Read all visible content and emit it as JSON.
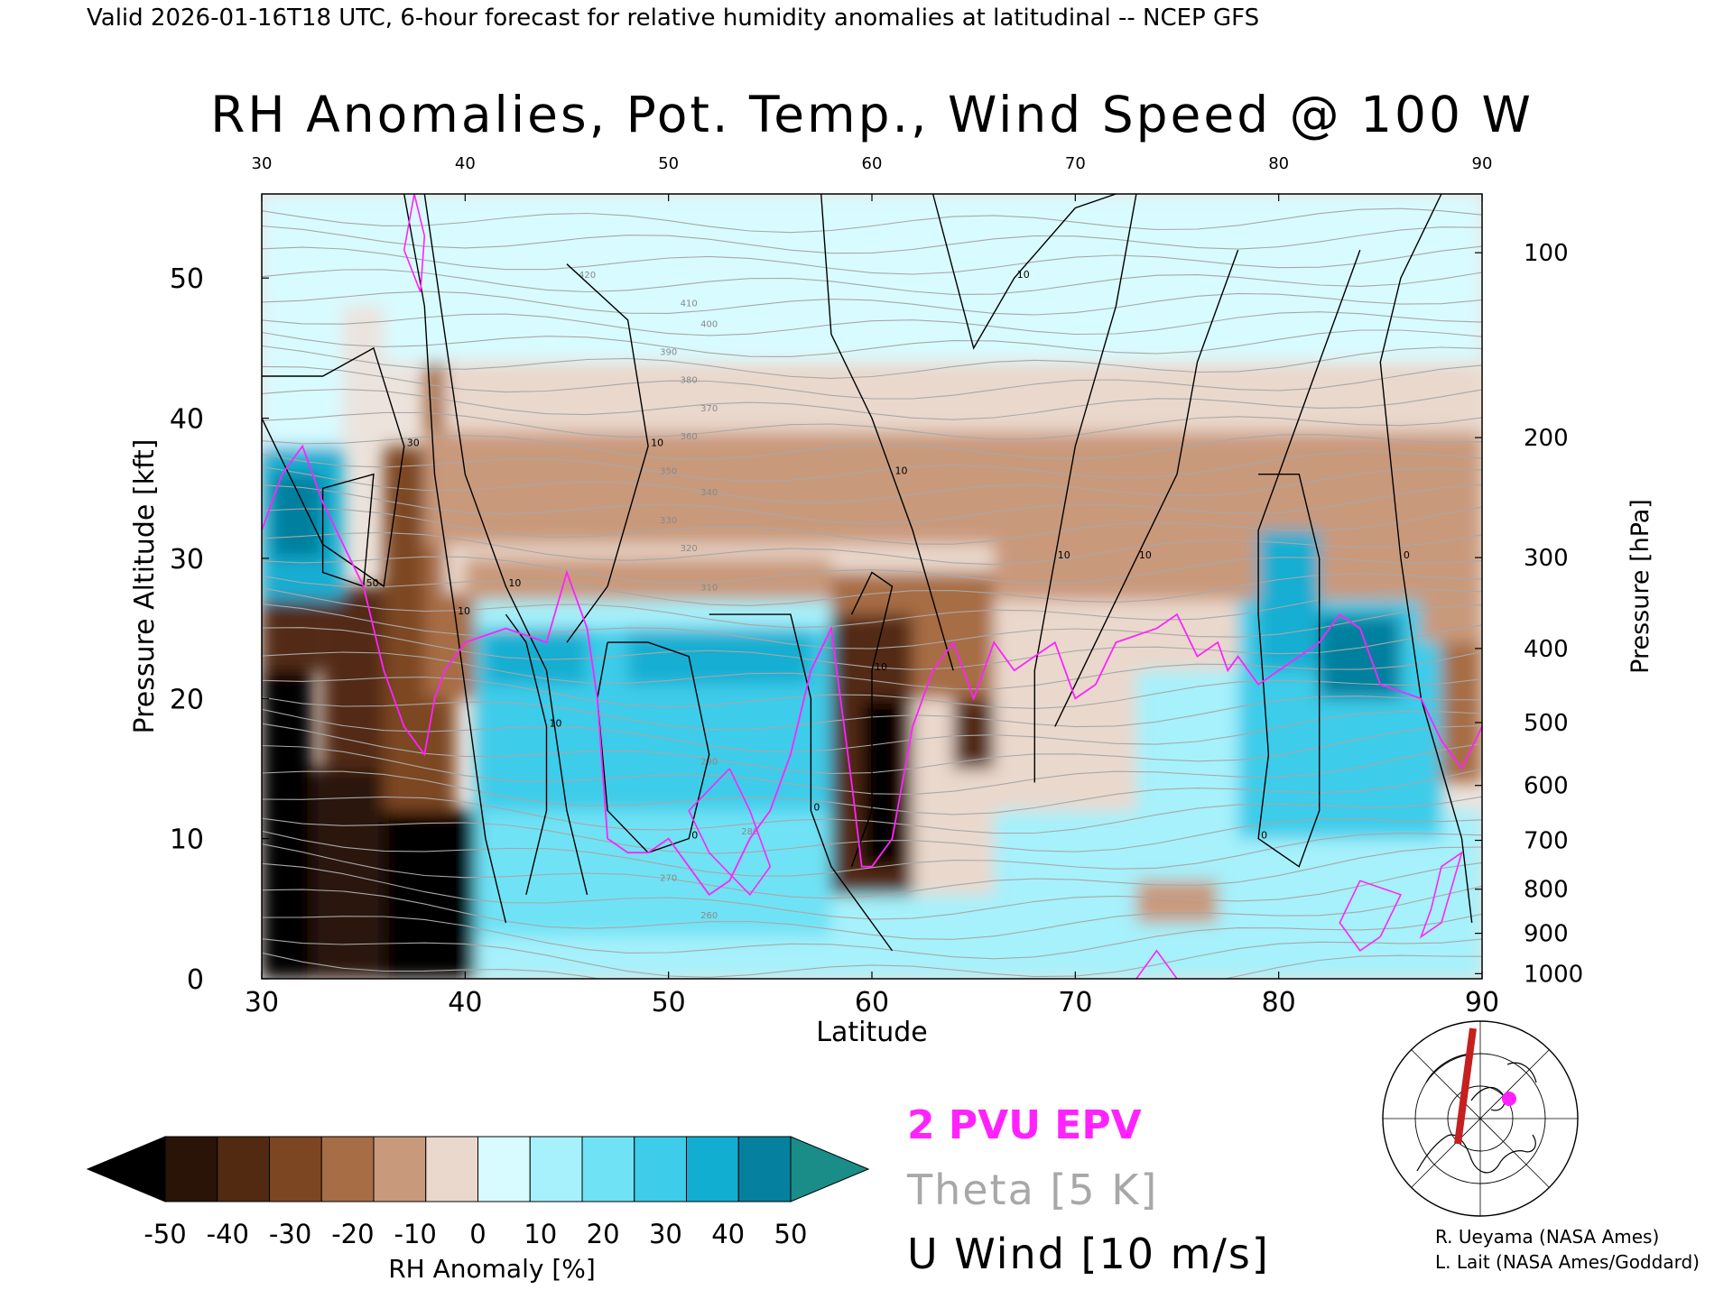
{
  "header": {
    "valid_line": "Valid 2026-01-16T18 UTC, 6-hour forecast for relative humidity anomalies at latitudinal -- NCEP GFS",
    "title": "RH Anomalies, Pot. Temp., Wind Speed @ 100 W"
  },
  "legend": {
    "epv": "2 PVU EPV",
    "theta": "Theta [5 K]",
    "uwind": "U Wind [10 m/s]",
    "epv_color": "#ff22ff",
    "theta_color": "#a8a8a8",
    "uwind_color": "#000000"
  },
  "credits": {
    "line1": "R. Ueyama (NASA Ames)",
    "line2": "L. Lait (NASA Ames/Goddard)"
  },
  "colorbar": {
    "label": "RH Anomaly [%]",
    "ticks": [
      "-50",
      "-40",
      "-30",
      "-20",
      "-10",
      "0",
      "10",
      "20",
      "30",
      "40",
      "50"
    ],
    "colors": [
      "#2a1307",
      "#522a12",
      "#7d4622",
      "#a76d45",
      "#c9997b",
      "#ead8cc",
      "#d8fbff",
      "#a6f1fb",
      "#6fe2f5",
      "#3dcce9",
      "#12aed2",
      "#05809e"
    ],
    "under_color": "#000000",
    "over_color": "#1a8d88"
  },
  "map_icon": "polar-stereographic-locator-map-icon",
  "chart_data": {
    "type": "heatmap",
    "xlabel": "Latitude",
    "ylabel": "Pressure Altitude [kft]",
    "y2label": "Pressure [hPa]",
    "xlim": [
      30,
      90
    ],
    "ylim": [
      0,
      56
    ],
    "x_ticks": [
      30,
      40,
      50,
      60,
      70,
      80,
      90
    ],
    "top_ticks": [
      30,
      40,
      50,
      60,
      70,
      80,
      90
    ],
    "y_ticks": [
      0,
      10,
      20,
      30,
      40,
      50
    ],
    "pressure_ticks": [
      100,
      200,
      300,
      400,
      500,
      600,
      700,
      800,
      900,
      1000
    ],
    "theta_interval": 5,
    "theta_labels": [
      {
        "value": 260,
        "lat": 52,
        "alt": 4.3
      },
      {
        "value": 270,
        "lat": 50,
        "alt": 7.0
      },
      {
        "value": 280,
        "lat": 54,
        "alt": 10.3
      },
      {
        "value": 290,
        "lat": 52,
        "alt": 15.3
      },
      {
        "value": 310,
        "lat": 52,
        "alt": 27.7
      },
      {
        "value": 320,
        "lat": 51,
        "alt": 30.5
      },
      {
        "value": 330,
        "lat": 50,
        "alt": 32.5
      },
      {
        "value": 340,
        "lat": 52,
        "alt": 34.5
      },
      {
        "value": 350,
        "lat": 50,
        "alt": 36.0
      },
      {
        "value": 360,
        "lat": 51,
        "alt": 38.5
      },
      {
        "value": 370,
        "lat": 52,
        "alt": 40.5
      },
      {
        "value": 380,
        "lat": 51,
        "alt": 42.5
      },
      {
        "value": 390,
        "lat": 50,
        "alt": 44.5
      },
      {
        "value": 400,
        "lat": 52,
        "alt": 46.5
      },
      {
        "value": 410,
        "lat": 51,
        "alt": 48.0
      },
      {
        "value": 420,
        "lat": 46,
        "alt": 50.0
      }
    ],
    "rh_cells": [
      {
        "lat0": 30,
        "lat1": 32.5,
        "alt0": 0,
        "alt1": 22,
        "rh": -55
      },
      {
        "lat0": 32.5,
        "lat1": 36,
        "alt0": 0,
        "alt1": 15,
        "rh": -45
      },
      {
        "lat0": 36,
        "lat1": 40.5,
        "alt0": 0,
        "alt1": 12,
        "rh": -55
      },
      {
        "lat0": 30,
        "lat1": 33,
        "alt0": 22,
        "alt1": 27,
        "rh": -35
      },
      {
        "lat0": 33,
        "lat1": 39,
        "alt0": 15,
        "alt1": 28,
        "rh": -35
      },
      {
        "lat0": 36,
        "lat1": 39.5,
        "alt0": 12,
        "alt1": 38,
        "rh": -30
      },
      {
        "lat0": 38,
        "lat1": 41,
        "alt0": 20,
        "alt1": 44,
        "rh": -25
      },
      {
        "lat0": 40.5,
        "lat1": 43.5,
        "alt0": 0,
        "alt1": 4,
        "rh": -30
      },
      {
        "lat0": 43.5,
        "lat1": 46.5,
        "alt0": 0,
        "alt1": 4,
        "rh": -10
      },
      {
        "lat0": 30,
        "lat1": 34,
        "alt0": 27,
        "alt1": 38,
        "rh": 35
      },
      {
        "lat0": 30.5,
        "lat1": 33,
        "alt0": 30,
        "alt1": 36,
        "rh": 48
      },
      {
        "lat0": 30,
        "lat1": 34,
        "alt0": 38,
        "alt1": 48,
        "rh": 5
      },
      {
        "lat0": 30,
        "lat1": 38,
        "alt0": 48,
        "alt1": 56,
        "rh": 8
      },
      {
        "lat0": 39,
        "lat1": 70,
        "alt0": 27.5,
        "alt1": 31,
        "rh": -5
      },
      {
        "lat0": 38,
        "lat1": 90,
        "alt0": 31,
        "alt1": 39,
        "rh": -12
      },
      {
        "lat0": 39,
        "lat1": 90,
        "alt0": 39,
        "alt1": 44,
        "rh": -5
      },
      {
        "lat0": 40,
        "lat1": 58,
        "alt0": 27,
        "alt1": 30,
        "rh": -15
      },
      {
        "lat0": 40.5,
        "lat1": 58,
        "alt0": 0,
        "alt1": 27,
        "rh": 15
      },
      {
        "lat0": 40.5,
        "lat1": 58,
        "alt0": 3,
        "alt1": 12,
        "rh": 20
      },
      {
        "lat0": 40.5,
        "lat1": 58,
        "alt0": 12,
        "alt1": 25,
        "rh": 30
      },
      {
        "lat0": 41,
        "lat1": 46,
        "alt0": 21,
        "alt1": 25,
        "rh": 40
      },
      {
        "lat0": 48,
        "lat1": 57,
        "alt0": 21,
        "alt1": 25,
        "rh": 40
      },
      {
        "lat0": 58,
        "lat1": 66,
        "alt0": 20,
        "alt1": 29,
        "rh": -25
      },
      {
        "lat0": 58,
        "lat1": 62,
        "alt0": 6,
        "alt1": 26,
        "rh": -35
      },
      {
        "lat0": 59.5,
        "lat1": 61.5,
        "alt0": 8,
        "alt1": 20,
        "rh": -55
      },
      {
        "lat0": 58,
        "lat1": 66,
        "alt0": 0,
        "alt1": 6,
        "rh": 15
      },
      {
        "lat0": 62,
        "lat1": 66,
        "alt0": 6,
        "alt1": 20,
        "rh": -8
      },
      {
        "lat0": 64,
        "lat1": 66,
        "alt0": 15,
        "alt1": 20,
        "rh": -40
      },
      {
        "lat0": 66,
        "lat1": 90,
        "alt0": 27,
        "alt1": 31,
        "rh": -10
      },
      {
        "lat0": 66,
        "lat1": 78,
        "alt0": 12,
        "alt1": 27,
        "rh": -8
      },
      {
        "lat0": 73,
        "lat1": 78,
        "alt0": 12,
        "alt1": 22,
        "rh": 10
      },
      {
        "lat0": 66,
        "lat1": 90,
        "alt0": 0,
        "alt1": 12,
        "rh": 15
      },
      {
        "lat0": 73,
        "lat1": 77,
        "alt0": 4,
        "alt1": 7,
        "rh": -10
      },
      {
        "lat0": 78,
        "lat1": 88,
        "alt0": 10,
        "alt1": 27,
        "rh": 25
      },
      {
        "lat0": 79,
        "lat1": 82,
        "alt0": 22,
        "alt1": 32,
        "rh": 40
      },
      {
        "lat0": 82,
        "lat1": 86,
        "alt0": 20,
        "alt1": 26,
        "rh": 42
      },
      {
        "lat0": 88,
        "lat1": 90,
        "alt0": 14,
        "alt1": 24,
        "rh": -20
      },
      {
        "lat0": 87,
        "lat1": 90,
        "alt0": 24,
        "alt1": 30,
        "rh": -12
      },
      {
        "lat0": 36,
        "lat1": 90,
        "alt0": 44,
        "alt1": 56,
        "rh": 2
      }
    ],
    "uwind_contours": [
      {
        "label": "10",
        "points": [
          [
            38,
            56
          ],
          [
            39,
            46
          ],
          [
            40,
            36
          ],
          [
            42,
            28
          ],
          [
            44,
            22
          ],
          [
            45,
            12
          ],
          [
            46,
            6
          ]
        ]
      },
      {
        "label": "10",
        "points": [
          [
            37,
            56
          ],
          [
            38,
            48
          ],
          [
            38.5,
            36
          ],
          [
            39.5,
            26
          ],
          [
            41,
            10
          ],
          [
            42,
            4
          ]
        ]
      },
      {
        "label": "30",
        "points": [
          [
            30,
            43
          ],
          [
            33,
            43
          ],
          [
            35.5,
            45
          ],
          [
            37,
            38
          ],
          [
            36,
            28
          ],
          [
            33,
            31
          ],
          [
            30,
            40
          ]
        ]
      },
      {
        "label": "50",
        "points": [
          [
            33,
            35
          ],
          [
            35.5,
            36
          ],
          [
            35,
            28
          ],
          [
            33,
            29
          ],
          [
            33,
            35
          ]
        ]
      },
      {
        "label": "10",
        "points": [
          [
            45,
            51
          ],
          [
            48,
            47
          ],
          [
            49,
            38
          ],
          [
            47,
            28
          ],
          [
            45,
            24
          ]
        ]
      },
      {
        "label": "0",
        "points": [
          [
            47,
            24
          ],
          [
            49,
            24
          ],
          [
            51,
            23
          ],
          [
            52,
            16
          ],
          [
            51,
            10
          ],
          [
            49,
            9
          ],
          [
            47,
            12
          ],
          [
            46.5,
            20
          ],
          [
            47,
            24
          ]
        ]
      },
      {
        "label": "10",
        "points": [
          [
            42,
            26
          ],
          [
            43,
            24
          ],
          [
            44,
            18
          ],
          [
            44,
            12
          ],
          [
            43,
            6
          ]
        ]
      },
      {
        "label": "0",
        "points": [
          [
            52,
            26
          ],
          [
            56,
            26
          ],
          [
            57,
            20
          ],
          [
            57,
            12
          ],
          [
            58,
            8
          ],
          [
            60,
            4
          ],
          [
            61,
            2
          ]
        ]
      },
      {
        "label": "10",
        "points": [
          [
            59,
            26
          ],
          [
            60,
            29
          ],
          [
            61,
            28
          ],
          [
            60,
            22
          ],
          [
            60,
            12
          ],
          [
            59,
            8
          ]
        ]
      },
      {
        "label": "10",
        "points": [
          [
            57.5,
            56
          ],
          [
            58,
            46
          ],
          [
            60,
            40
          ],
          [
            61,
            36
          ],
          [
            62,
            32
          ],
          [
            64,
            22
          ]
        ]
      },
      {
        "label": "10",
        "points": [
          [
            63,
            56
          ],
          [
            65,
            45
          ],
          [
            67,
            50
          ],
          [
            70,
            55
          ],
          [
            72,
            56
          ]
        ]
      },
      {
        "label": "10",
        "points": [
          [
            73,
            56
          ],
          [
            72,
            48
          ],
          [
            70,
            38
          ],
          [
            69,
            30
          ],
          [
            68,
            22
          ],
          [
            68,
            14
          ]
        ]
      },
      {
        "label": "10",
        "points": [
          [
            78,
            52
          ],
          [
            76,
            44
          ],
          [
            75,
            36
          ],
          [
            73,
            30
          ],
          [
            71,
            24
          ],
          [
            69,
            18
          ]
        ]
      },
      {
        "label": "0",
        "points": [
          [
            84,
            52
          ],
          [
            82,
            44
          ],
          [
            80,
            36
          ],
          [
            79,
            32
          ],
          [
            79,
            26
          ],
          [
            79.5,
            16
          ],
          [
            79,
            10
          ],
          [
            81,
            8
          ],
          [
            82,
            12
          ],
          [
            82,
            22
          ],
          [
            82,
            30
          ],
          [
            81,
            36
          ],
          [
            79,
            36
          ]
        ]
      },
      {
        "label": "0",
        "points": [
          [
            88,
            56
          ],
          [
            86,
            50
          ],
          [
            85,
            44
          ],
          [
            86,
            30
          ],
          [
            87,
            20
          ],
          [
            89,
            10
          ],
          [
            89.5,
            4
          ]
        ]
      }
    ],
    "epv_2pvu": [
      [
        30,
        32
      ],
      [
        31,
        36
      ],
      [
        32,
        38
      ],
      [
        33,
        34
      ],
      [
        34,
        31
      ],
      [
        35,
        28
      ],
      [
        36,
        22
      ],
      [
        37,
        18
      ],
      [
        38,
        16
      ],
      [
        38.5,
        20
      ],
      [
        39,
        22
      ],
      [
        40,
        24
      ],
      [
        42,
        25
      ],
      [
        44,
        24
      ],
      [
        45,
        29
      ],
      [
        46,
        25
      ],
      [
        46.5,
        20
      ],
      [
        47,
        10
      ],
      [
        48,
        9
      ],
      [
        49,
        9
      ],
      [
        50,
        10
      ],
      [
        51,
        8
      ],
      [
        52,
        6
      ],
      [
        53,
        7
      ],
      [
        54,
        10
      ],
      [
        55,
        12
      ],
      [
        56,
        16
      ],
      [
        57,
        22
      ],
      [
        58,
        25
      ],
      [
        59,
        14
      ],
      [
        59.5,
        8
      ],
      [
        60,
        8
      ],
      [
        61,
        10
      ],
      [
        62,
        18
      ],
      [
        63,
        22
      ],
      [
        64,
        24
      ],
      [
        65,
        20
      ],
      [
        66,
        24
      ],
      [
        67,
        22
      ],
      [
        69,
        24
      ],
      [
        70,
        20
      ],
      [
        71,
        21
      ],
      [
        72,
        24
      ],
      [
        74,
        25
      ],
      [
        75,
        26
      ],
      [
        76,
        23
      ],
      [
        77,
        24
      ],
      [
        77.5,
        22
      ],
      [
        78,
        23
      ],
      [
        79,
        21
      ],
      [
        80,
        22
      ],
      [
        81,
        23
      ],
      [
        82,
        24
      ],
      [
        83,
        26
      ],
      [
        84,
        25
      ],
      [
        85,
        21
      ],
      [
        87,
        20
      ],
      [
        88,
        17
      ],
      [
        89,
        15
      ],
      [
        90,
        18
      ]
    ],
    "epv_small": [
      [
        [
          37,
          52
        ],
        [
          37.5,
          56
        ],
        [
          38,
          53
        ],
        [
          37.8,
          49
        ],
        [
          37,
          52
        ]
      ],
      [
        [
          53,
          15
        ],
        [
          54,
          12
        ],
        [
          55,
          8
        ],
        [
          54,
          6
        ],
        [
          52,
          9
        ],
        [
          51,
          12
        ],
        [
          53,
          15
        ]
      ],
      [
        [
          75,
          0
        ],
        [
          74,
          2
        ],
        [
          73,
          0
        ]
      ],
      [
        [
          87.5,
          5
        ],
        [
          88,
          8
        ],
        [
          89,
          9
        ],
        [
          88,
          4
        ],
        [
          87,
          3
        ],
        [
          87.5,
          5
        ]
      ],
      [
        [
          85,
          3
        ],
        [
          86,
          6
        ],
        [
          84,
          7
        ],
        [
          83,
          4
        ],
        [
          84,
          2
        ],
        [
          85,
          3
        ]
      ]
    ]
  }
}
